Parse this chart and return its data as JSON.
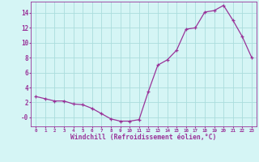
{
  "x": [
    0,
    1,
    2,
    3,
    4,
    5,
    6,
    7,
    8,
    9,
    10,
    11,
    12,
    13,
    14,
    15,
    16,
    17,
    18,
    19,
    20,
    21,
    22,
    23
  ],
  "y": [
    2.8,
    2.5,
    2.2,
    2.2,
    1.8,
    1.7,
    1.2,
    0.5,
    -0.2,
    -0.5,
    -0.5,
    -0.3,
    3.5,
    7.0,
    7.7,
    9.0,
    11.8,
    12.0,
    14.1,
    14.3,
    15.0,
    13.0,
    10.8,
    8.0
  ],
  "line_color": "#993399",
  "marker_color": "#993399",
  "bg_color": "#d5f5f5",
  "grid_color": "#aadddd",
  "xlabel": "Windchill (Refroidissement éolien,°C)",
  "xlabel_color": "#993399",
  "tick_color": "#993399",
  "ylim": [
    -1.2,
    15.5
  ],
  "xlim": [
    -0.5,
    23.5
  ],
  "yticks": [
    0,
    2,
    4,
    6,
    8,
    10,
    12,
    14
  ],
  "ytick_labels": [
    "-0",
    "2",
    "4",
    "6",
    "8",
    "10",
    "12",
    "14"
  ],
  "xticks": [
    0,
    1,
    2,
    3,
    4,
    5,
    6,
    7,
    8,
    9,
    10,
    11,
    12,
    13,
    14,
    15,
    16,
    17,
    18,
    19,
    20,
    21,
    22,
    23
  ]
}
